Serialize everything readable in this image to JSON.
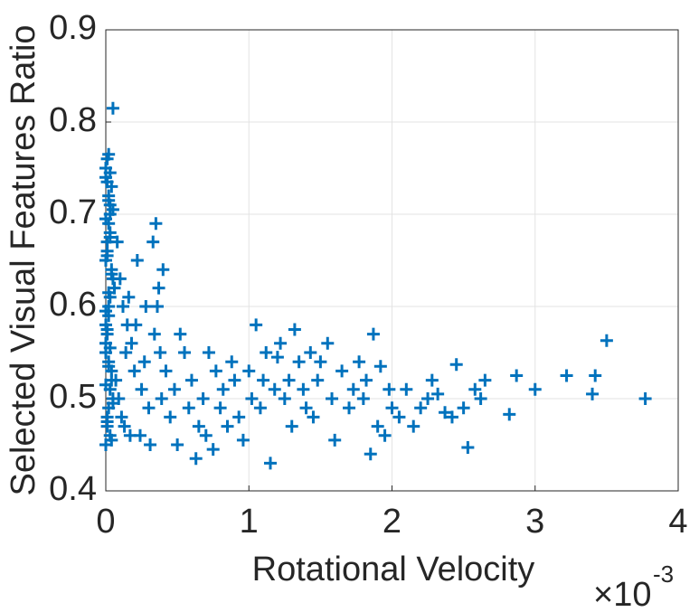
{
  "chart_data": {
    "type": "scatter",
    "xlabel": "Rotational Velocity",
    "ylabel": "Selected Visual Features Ratio",
    "x_multiplier": {
      "base": "×10",
      "exponent": "-3"
    },
    "xlim": [
      0,
      4
    ],
    "xticks": [
      0,
      1,
      2,
      3,
      4
    ],
    "ylim": [
      0.4,
      0.9
    ],
    "yticks": [
      0.4,
      0.5,
      0.6,
      0.7,
      0.8,
      0.9
    ],
    "grid": true,
    "marker": "plus",
    "color": "#0072bd",
    "x": [
      0.0,
      0.01,
      0.02,
      0.03,
      0.04,
      0.0,
      0.01,
      0.02,
      0.03,
      0.05,
      0.0,
      0.01,
      0.02,
      0.03,
      0.04,
      0.0,
      0.01,
      0.02,
      0.03,
      0.04,
      0.02,
      0.0,
      0.04,
      0.01,
      0.03,
      0.05,
      0.02,
      0.0,
      0.06,
      0.01,
      0.03,
      0.0,
      0.02,
      0.04,
      0.01,
      0.05,
      0.0,
      0.02,
      0.03,
      0.01,
      0.0,
      0.02,
      0.04,
      0.01,
      0.03,
      0.0,
      0.02,
      0.01,
      0.03,
      0.05,
      0.08,
      0.1,
      0.12,
      0.15,
      0.18,
      0.07,
      0.09,
      0.11,
      0.14,
      0.17,
      0.2,
      0.22,
      0.25,
      0.28,
      0.3,
      0.33,
      0.35,
      0.37,
      0.38,
      0.4,
      0.05,
      0.13,
      0.16,
      0.21,
      0.24,
      0.27,
      0.31,
      0.34,
      0.36,
      0.39,
      0.42,
      0.45,
      0.48,
      0.5,
      0.52,
      0.55,
      0.58,
      0.6,
      0.63,
      0.65,
      0.68,
      0.7,
      0.72,
      0.75,
      0.77,
      0.8,
      0.82,
      0.85,
      0.88,
      0.9,
      0.93,
      0.96,
      1.0,
      1.02,
      1.05,
      1.08,
      1.1,
      1.12,
      1.15,
      1.18,
      1.2,
      1.22,
      1.25,
      1.28,
      1.3,
      1.32,
      1.35,
      1.38,
      1.4,
      1.43,
      1.45,
      1.48,
      1.5,
      1.55,
      1.58,
      1.6,
      1.65,
      1.7,
      1.73,
      1.77,
      1.8,
      1.82,
      1.85,
      1.87,
      1.9,
      1.92,
      1.95,
      1.98,
      2.0,
      2.05,
      2.1,
      2.15,
      2.2,
      2.25,
      2.28,
      2.32,
      2.37,
      2.42,
      2.45,
      2.5,
      2.53,
      2.58,
      2.62,
      2.65,
      2.82,
      2.87,
      3.0,
      3.22,
      3.4,
      3.42,
      3.5,
      3.77
    ],
    "y": [
      0.45,
      0.47,
      0.49,
      0.51,
      0.53,
      0.55,
      0.57,
      0.59,
      0.61,
      0.63,
      0.65,
      0.67,
      0.69,
      0.71,
      0.73,
      0.75,
      0.76,
      0.72,
      0.68,
      0.64,
      0.6,
      0.56,
      0.52,
      0.48,
      0.46,
      0.5,
      0.54,
      0.58,
      0.62,
      0.66,
      0.7,
      0.74,
      0.765,
      0.455,
      0.475,
      0.495,
      0.515,
      0.535,
      0.555,
      0.575,
      0.595,
      0.615,
      0.635,
      0.655,
      0.675,
      0.695,
      0.715,
      0.735,
      0.745,
      0.705,
      0.67,
      0.63,
      0.6,
      0.58,
      0.56,
      0.52,
      0.5,
      0.48,
      0.55,
      0.46,
      0.53,
      0.65,
      0.51,
      0.6,
      0.49,
      0.67,
      0.69,
      0.62,
      0.55,
      0.64,
      0.815,
      0.47,
      0.61,
      0.58,
      0.46,
      0.54,
      0.45,
      0.57,
      0.6,
      0.5,
      0.53,
      0.48,
      0.51,
      0.45,
      0.57,
      0.55,
      0.49,
      0.52,
      0.435,
      0.47,
      0.5,
      0.46,
      0.55,
      0.445,
      0.53,
      0.49,
      0.51,
      0.47,
      0.54,
      0.52,
      0.48,
      0.455,
      0.53,
      0.5,
      0.58,
      0.49,
      0.52,
      0.55,
      0.43,
      0.51,
      0.545,
      0.56,
      0.5,
      0.52,
      0.47,
      0.575,
      0.54,
      0.51,
      0.49,
      0.55,
      0.48,
      0.52,
      0.54,
      0.56,
      0.5,
      0.455,
      0.53,
      0.49,
      0.51,
      0.54,
      0.5,
      0.52,
      0.44,
      0.57,
      0.47,
      0.535,
      0.46,
      0.51,
      0.49,
      0.48,
      0.51,
      0.47,
      0.49,
      0.5,
      0.52,
      0.505,
      0.485,
      0.48,
      0.537,
      0.49,
      0.447,
      0.51,
      0.5,
      0.52,
      0.483,
      0.525,
      0.51,
      0.525,
      0.505,
      0.525,
      0.563,
      0.5
    ]
  }
}
